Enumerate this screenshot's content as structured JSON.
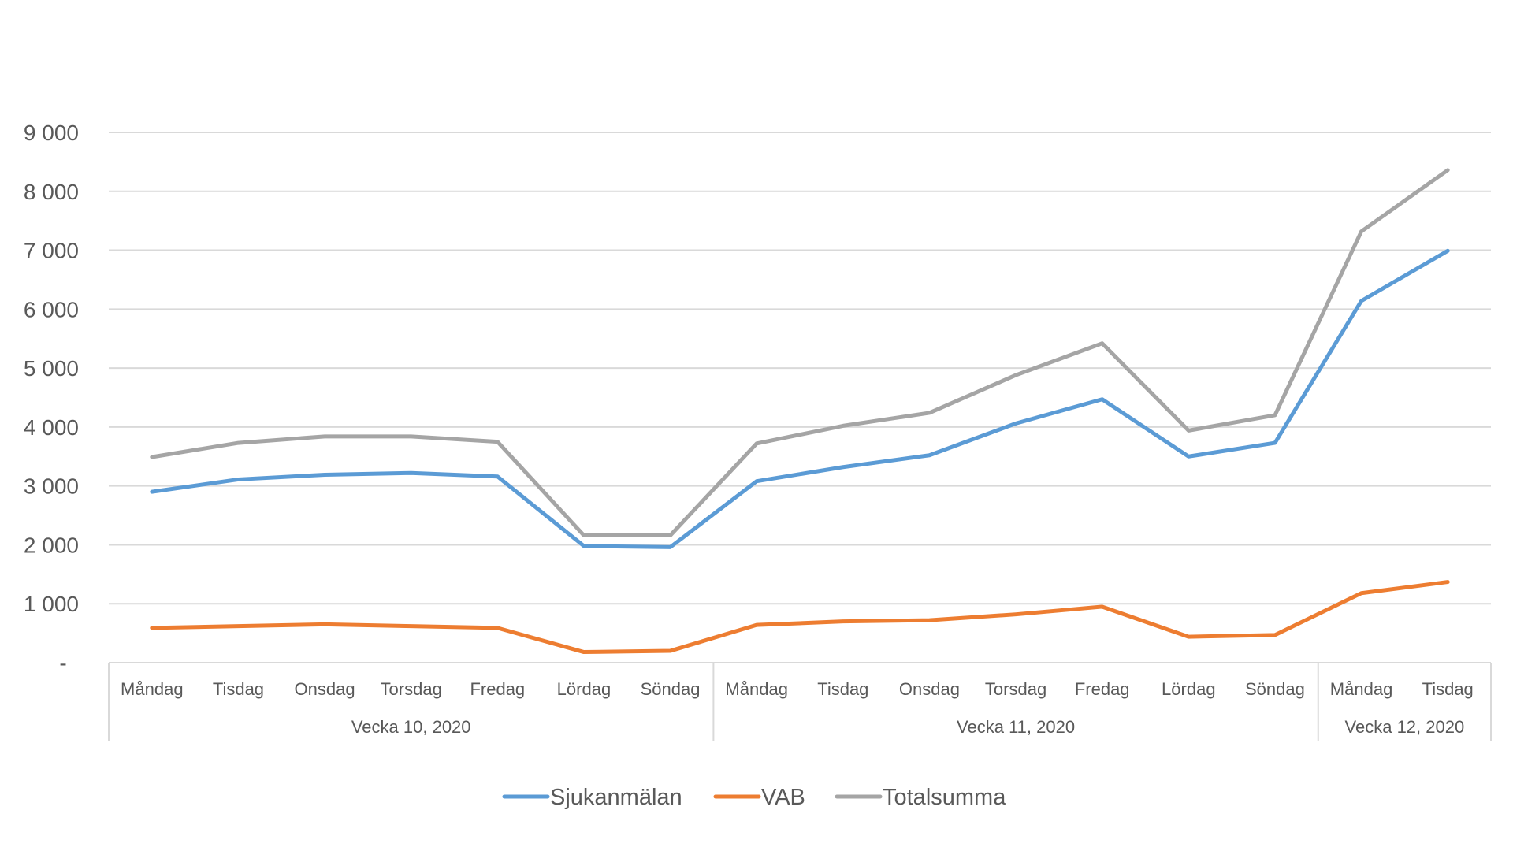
{
  "chart_data": {
    "type": "line",
    "title": "",
    "xlabel": "",
    "ylabel": "",
    "ylim": [
      0,
      9000
    ],
    "yticks": [
      0,
      1000,
      2000,
      3000,
      4000,
      5000,
      6000,
      7000,
      8000,
      9000
    ],
    "ytick_labels": [
      "-",
      "1 000",
      "2 000",
      "3 000",
      "4 000",
      "5 000",
      "6 000",
      "7 000",
      "8 000",
      "9 000"
    ],
    "grid": true,
    "legend_position": "bottom",
    "categories": [
      "Måndag",
      "Tisdag",
      "Onsdag",
      "Torsdag",
      "Fredag",
      "Lördag",
      "Söndag",
      "Måndag",
      "Tisdag",
      "Onsdag",
      "Torsdag",
      "Fredag",
      "Lördag",
      "Söndag",
      "Måndag",
      "Tisdag"
    ],
    "groups": [
      {
        "label": "Vecka 10, 2020",
        "count": 7
      },
      {
        "label": "Vecka 11, 2020",
        "count": 7
      },
      {
        "label": "Vecka 12, 2020",
        "count": 2
      }
    ],
    "series": [
      {
        "name": "Sjukanmälan",
        "color": "#5B9BD5",
        "values": [
          2900,
          3110,
          3190,
          3220,
          3160,
          1980,
          1960,
          3080,
          3320,
          3520,
          4060,
          4470,
          3500,
          3730,
          6140,
          6990
        ]
      },
      {
        "name": "VAB",
        "color": "#ED7D31",
        "values": [
          590,
          620,
          650,
          620,
          590,
          180,
          200,
          640,
          700,
          720,
          820,
          950,
          440,
          470,
          1180,
          1370
        ]
      },
      {
        "name": "Totalsumma",
        "color": "#A5A5A5",
        "values": [
          3490,
          3730,
          3840,
          3840,
          3750,
          2160,
          2160,
          3720,
          4020,
          4240,
          4880,
          5420,
          3940,
          4200,
          7320,
          8360
        ]
      }
    ]
  }
}
